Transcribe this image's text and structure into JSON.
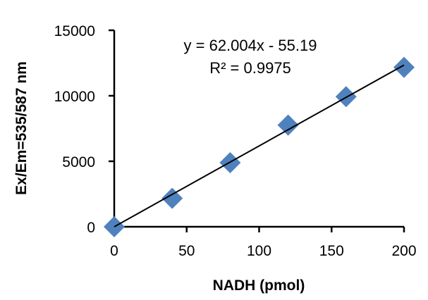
{
  "chart_data": {
    "type": "scatter",
    "title": "",
    "xlabel": "NADH  (pmol)",
    "ylabel": "Ex/Em=535/587  nm",
    "xlim": [
      0,
      200
    ],
    "ylim": [
      0,
      15000
    ],
    "xticks": [
      "0",
      "50",
      "100",
      "150",
      "200"
    ],
    "yticks": [
      "0",
      "5000",
      "10000",
      "15000"
    ],
    "grid": false,
    "legend": "none",
    "marker_color": "#4f81bd",
    "series": [
      {
        "x": [
          0,
          40,
          80,
          120,
          160,
          200
        ],
        "y": [
          0,
          2170,
          4890,
          7760,
          9930,
          12170
        ]
      }
    ],
    "trendline": {
      "slope": 62.004,
      "intercept": -55.19,
      "color": "#000000"
    },
    "annotations": [
      "y = 62.004x  - 55.19",
      "R² = 0.9975"
    ]
  }
}
